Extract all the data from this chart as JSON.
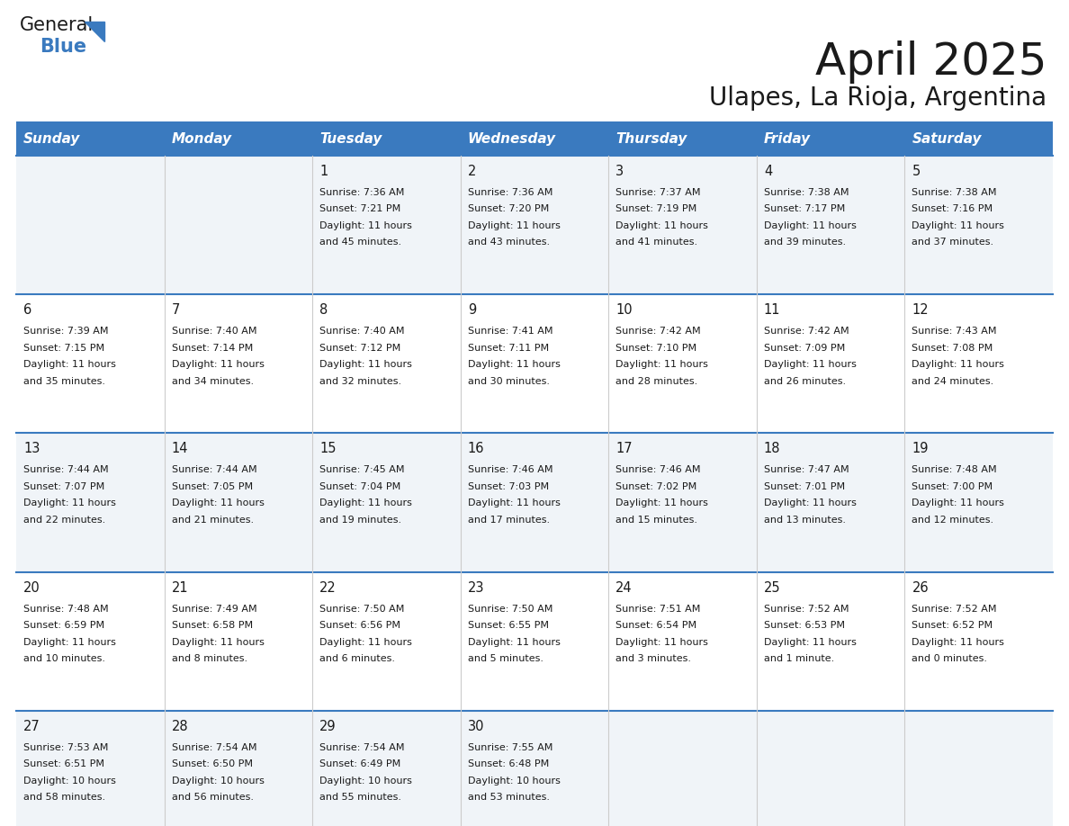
{
  "title": "April 2025",
  "subtitle": "Ulapes, La Rioja, Argentina",
  "header_color": "#3a7abf",
  "header_text_color": "#ffffff",
  "cell_bg_odd": "#f0f4f8",
  "cell_bg_even": "#ffffff",
  "border_color": "#3a7abf",
  "day_headers": [
    "Sunday",
    "Monday",
    "Tuesday",
    "Wednesday",
    "Thursday",
    "Friday",
    "Saturday"
  ],
  "days": [
    {
      "day": 0,
      "col": 0,
      "row": 0,
      "num": "",
      "sunrise": "",
      "sunset": "",
      "daylight": ""
    },
    {
      "day": 0,
      "col": 1,
      "row": 0,
      "num": "",
      "sunrise": "",
      "sunset": "",
      "daylight": ""
    },
    {
      "day": 1,
      "col": 2,
      "row": 0,
      "num": "1",
      "sunrise": "7:36 AM",
      "sunset": "7:21 PM",
      "daylight": "11 hours and 45 minutes."
    },
    {
      "day": 2,
      "col": 3,
      "row": 0,
      "num": "2",
      "sunrise": "7:36 AM",
      "sunset": "7:20 PM",
      "daylight": "11 hours and 43 minutes."
    },
    {
      "day": 3,
      "col": 4,
      "row": 0,
      "num": "3",
      "sunrise": "7:37 AM",
      "sunset": "7:19 PM",
      "daylight": "11 hours and 41 minutes."
    },
    {
      "day": 4,
      "col": 5,
      "row": 0,
      "num": "4",
      "sunrise": "7:38 AM",
      "sunset": "7:17 PM",
      "daylight": "11 hours and 39 minutes."
    },
    {
      "day": 5,
      "col": 6,
      "row": 0,
      "num": "5",
      "sunrise": "7:38 AM",
      "sunset": "7:16 PM",
      "daylight": "11 hours and 37 minutes."
    },
    {
      "day": 6,
      "col": 0,
      "row": 1,
      "num": "6",
      "sunrise": "7:39 AM",
      "sunset": "7:15 PM",
      "daylight": "11 hours and 35 minutes."
    },
    {
      "day": 7,
      "col": 1,
      "row": 1,
      "num": "7",
      "sunrise": "7:40 AM",
      "sunset": "7:14 PM",
      "daylight": "11 hours and 34 minutes."
    },
    {
      "day": 8,
      "col": 2,
      "row": 1,
      "num": "8",
      "sunrise": "7:40 AM",
      "sunset": "7:12 PM",
      "daylight": "11 hours and 32 minutes."
    },
    {
      "day": 9,
      "col": 3,
      "row": 1,
      "num": "9",
      "sunrise": "7:41 AM",
      "sunset": "7:11 PM",
      "daylight": "11 hours and 30 minutes."
    },
    {
      "day": 10,
      "col": 4,
      "row": 1,
      "num": "10",
      "sunrise": "7:42 AM",
      "sunset": "7:10 PM",
      "daylight": "11 hours and 28 minutes."
    },
    {
      "day": 11,
      "col": 5,
      "row": 1,
      "num": "11",
      "sunrise": "7:42 AM",
      "sunset": "7:09 PM",
      "daylight": "11 hours and 26 minutes."
    },
    {
      "day": 12,
      "col": 6,
      "row": 1,
      "num": "12",
      "sunrise": "7:43 AM",
      "sunset": "7:08 PM",
      "daylight": "11 hours and 24 minutes."
    },
    {
      "day": 13,
      "col": 0,
      "row": 2,
      "num": "13",
      "sunrise": "7:44 AM",
      "sunset": "7:07 PM",
      "daylight": "11 hours and 22 minutes."
    },
    {
      "day": 14,
      "col": 1,
      "row": 2,
      "num": "14",
      "sunrise": "7:44 AM",
      "sunset": "7:05 PM",
      "daylight": "11 hours and 21 minutes."
    },
    {
      "day": 15,
      "col": 2,
      "row": 2,
      "num": "15",
      "sunrise": "7:45 AM",
      "sunset": "7:04 PM",
      "daylight": "11 hours and 19 minutes."
    },
    {
      "day": 16,
      "col": 3,
      "row": 2,
      "num": "16",
      "sunrise": "7:46 AM",
      "sunset": "7:03 PM",
      "daylight": "11 hours and 17 minutes."
    },
    {
      "day": 17,
      "col": 4,
      "row": 2,
      "num": "17",
      "sunrise": "7:46 AM",
      "sunset": "7:02 PM",
      "daylight": "11 hours and 15 minutes."
    },
    {
      "day": 18,
      "col": 5,
      "row": 2,
      "num": "18",
      "sunrise": "7:47 AM",
      "sunset": "7:01 PM",
      "daylight": "11 hours and 13 minutes."
    },
    {
      "day": 19,
      "col": 6,
      "row": 2,
      "num": "19",
      "sunrise": "7:48 AM",
      "sunset": "7:00 PM",
      "daylight": "11 hours and 12 minutes."
    },
    {
      "day": 20,
      "col": 0,
      "row": 3,
      "num": "20",
      "sunrise": "7:48 AM",
      "sunset": "6:59 PM",
      "daylight": "11 hours and 10 minutes."
    },
    {
      "day": 21,
      "col": 1,
      "row": 3,
      "num": "21",
      "sunrise": "7:49 AM",
      "sunset": "6:58 PM",
      "daylight": "11 hours and 8 minutes."
    },
    {
      "day": 22,
      "col": 2,
      "row": 3,
      "num": "22",
      "sunrise": "7:50 AM",
      "sunset": "6:56 PM",
      "daylight": "11 hours and 6 minutes."
    },
    {
      "day": 23,
      "col": 3,
      "row": 3,
      "num": "23",
      "sunrise": "7:50 AM",
      "sunset": "6:55 PM",
      "daylight": "11 hours and 5 minutes."
    },
    {
      "day": 24,
      "col": 4,
      "row": 3,
      "num": "24",
      "sunrise": "7:51 AM",
      "sunset": "6:54 PM",
      "daylight": "11 hours and 3 minutes."
    },
    {
      "day": 25,
      "col": 5,
      "row": 3,
      "num": "25",
      "sunrise": "7:52 AM",
      "sunset": "6:53 PM",
      "daylight": "11 hours and 1 minute."
    },
    {
      "day": 26,
      "col": 6,
      "row": 3,
      "num": "26",
      "sunrise": "7:52 AM",
      "sunset": "6:52 PM",
      "daylight": "11 hours and 0 minutes."
    },
    {
      "day": 27,
      "col": 0,
      "row": 4,
      "num": "27",
      "sunrise": "7:53 AM",
      "sunset": "6:51 PM",
      "daylight": "10 hours and 58 minutes."
    },
    {
      "day": 28,
      "col": 1,
      "row": 4,
      "num": "28",
      "sunrise": "7:54 AM",
      "sunset": "6:50 PM",
      "daylight": "10 hours and 56 minutes."
    },
    {
      "day": 29,
      "col": 2,
      "row": 4,
      "num": "29",
      "sunrise": "7:54 AM",
      "sunset": "6:49 PM",
      "daylight": "10 hours and 55 minutes."
    },
    {
      "day": 30,
      "col": 3,
      "row": 4,
      "num": "30",
      "sunrise": "7:55 AM",
      "sunset": "6:48 PM",
      "daylight": "10 hours and 53 minutes."
    },
    {
      "day": 0,
      "col": 4,
      "row": 4,
      "num": "",
      "sunrise": "",
      "sunset": "",
      "daylight": ""
    },
    {
      "day": 0,
      "col": 5,
      "row": 4,
      "num": "",
      "sunrise": "",
      "sunset": "",
      "daylight": ""
    },
    {
      "day": 0,
      "col": 6,
      "row": 4,
      "num": "",
      "sunrise": "",
      "sunset": "",
      "daylight": ""
    }
  ],
  "logo_text1": "General",
  "logo_text2": "Blue",
  "logo_color1": "#1a1a1a",
  "logo_color2": "#3a7abf",
  "logo_triangle_color": "#3a7abf"
}
